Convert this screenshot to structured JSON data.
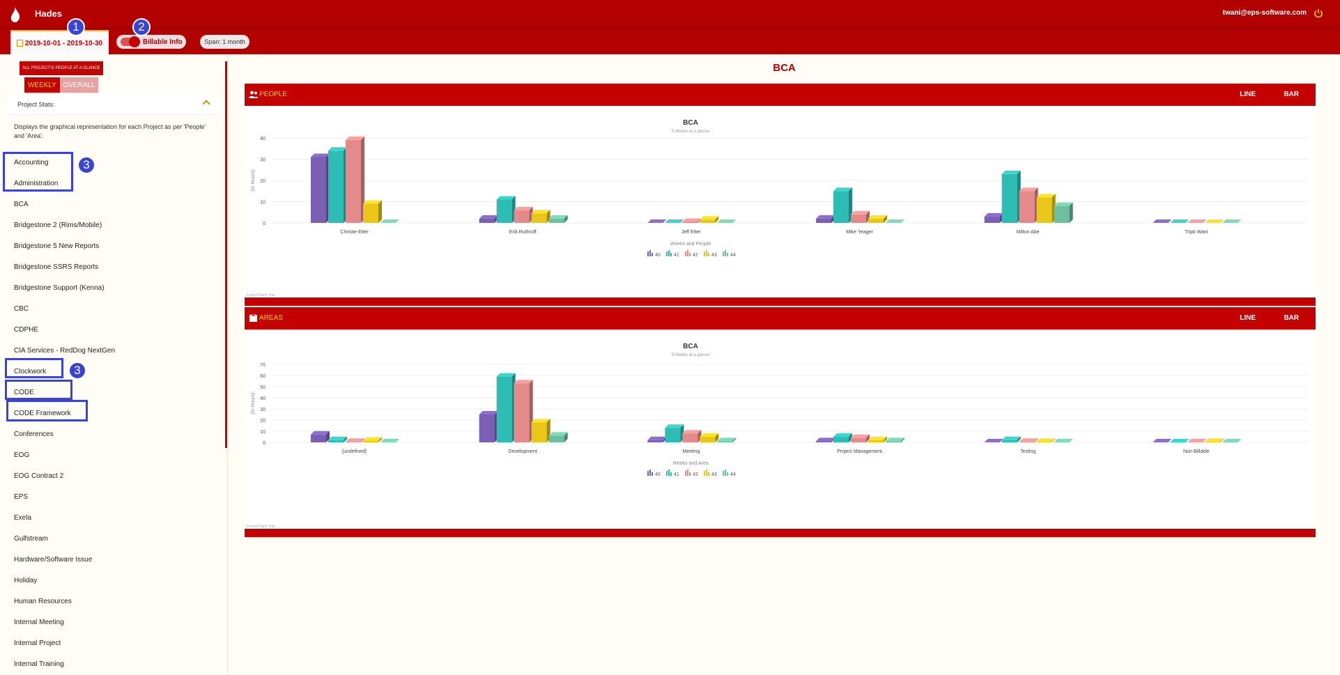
{
  "app": {
    "name": "Hades",
    "user_email": "twani@eps-software.com"
  },
  "toolbar": {
    "date_range": "2019-10-01 - 2019-10-30",
    "billable_label": "Billable Info",
    "span_label": "Span: 1 month"
  },
  "markers": {
    "m1": "1",
    "m2": "2",
    "m3a": "3",
    "m3b": "3"
  },
  "sidebar": {
    "glance_button": "ALL PROJECTS/ PEOPLE AT A GLANCE",
    "weekly_label": "WEEKLY",
    "overall_label": "OVERALL",
    "stats_label": "Project Stats:",
    "stats_description": "Displays the graphical representation for each Project as per 'People' and 'Area'.",
    "projects": [
      "Accounting",
      "Administration",
      "BCA",
      "Bridgestone 2 (Rims/Mobile)",
      "Bridgestone 5 New Reports",
      "Bridgestone SSRS Reports",
      "Bridgestone Support (Kenna)",
      "CBC",
      "CDPHE",
      "CIA Services - RedDog NextGen",
      "Clockwork",
      "CODE",
      "CODE Framework",
      "Conferences",
      "EOG",
      "EOG Contract 2",
      "EPS",
      "Exela",
      "Gulfstream",
      "Hardware/Software Issue",
      "Holiday",
      "Human Resources",
      "Internal Meeting",
      "Internal Project",
      "Internal Training"
    ]
  },
  "main": {
    "title": "BCA"
  },
  "panels": {
    "people": {
      "title": "PEOPLE",
      "line_label": "LINE",
      "bar_label": "BAR"
    },
    "areas": {
      "title": "AREAS",
      "line_label": "LINE",
      "bar_label": "BAR"
    }
  },
  "colors": {
    "series": [
      "#7b5fb5",
      "#2ebdb5",
      "#e58a8a",
      "#e8c61a",
      "#6cc0a0"
    ],
    "accent": "#c40000",
    "marker": "#3944d6"
  },
  "chart_data": [
    {
      "type": "bar",
      "title": "BCA",
      "subtitle": "5 Weeks at a glance",
      "xlabel": "Weeks and People",
      "ylabel": "(In Hours)",
      "ylim": [
        0,
        40
      ],
      "yticks": [
        0,
        10,
        20,
        30,
        40
      ],
      "categories": [
        "Christie Etter",
        "Erik Ruthruff",
        "Jeff Etter",
        "Mike Yeager",
        "Milton Abe",
        "Tripti Wani"
      ],
      "series": [
        {
          "name": "40",
          "values": [
            31,
            2,
            0,
            2,
            3,
            0
          ]
        },
        {
          "name": "41",
          "values": [
            34,
            11,
            0,
            15,
            23,
            0
          ]
        },
        {
          "name": "42",
          "values": [
            39,
            6,
            0.5,
            4,
            15,
            0
          ]
        },
        {
          "name": "43",
          "values": [
            9,
            4.5,
            1.5,
            2,
            12,
            0
          ]
        },
        {
          "name": "44",
          "values": [
            0,
            2,
            0,
            0,
            8,
            0
          ]
        }
      ],
      "watermark": "FusionCharts Trial"
    },
    {
      "type": "bar",
      "title": "BCA",
      "subtitle": "5 Weeks at a glance",
      "xlabel": "Weeks and Area",
      "ylabel": "(In Hours)",
      "ylim": [
        0,
        70
      ],
      "yticks": [
        0,
        10,
        20,
        30,
        40,
        50,
        60,
        70
      ],
      "categories": [
        "[undefined]",
        "Development",
        "Meeting",
        "Project Management",
        "Testing",
        "Non-Billable"
      ],
      "series": [
        {
          "name": "40",
          "values": [
            7,
            25,
            2,
            1,
            0,
            0
          ]
        },
        {
          "name": "41",
          "values": [
            2,
            59,
            13,
            5,
            2,
            0
          ]
        },
        {
          "name": "42",
          "values": [
            0.5,
            53,
            8,
            4,
            0.5,
            0
          ]
        },
        {
          "name": "43",
          "values": [
            1.5,
            18,
            5,
            2,
            0.5,
            0.5
          ]
        },
        {
          "name": "44",
          "values": [
            0,
            6,
            1,
            1,
            0,
            0
          ]
        }
      ],
      "watermark": "FusionCharts Trial"
    }
  ]
}
